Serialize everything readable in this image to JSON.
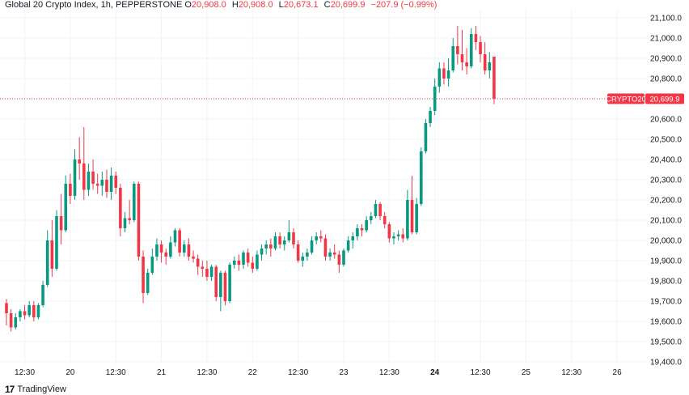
{
  "header": {
    "title": "Global 20 Crypto Index, 1h, PEPPERSTONE",
    "o_label": "O",
    "o_value": "20,908.0",
    "h_label": "H",
    "h_value": "20,908.0",
    "l_label": "L",
    "l_value": "20,673.1",
    "c_label": "C",
    "c_value": "20,699.9",
    "change": "−207.9 (−0.99%)"
  },
  "colors": {
    "up": "#089981",
    "down": "#f23645",
    "grid": "#f0f3fa",
    "text": "#131722"
  },
  "last_price": {
    "symbol": "CRYPTO20",
    "value_text": "20,699.9",
    "value": 20699.9
  },
  "footer": {
    "brand": "TradingView"
  },
  "chart_data": {
    "type": "candlestick",
    "title": "Global 20 Crypto Index, 1h, PEPPERSTONE",
    "ylim": [
      19400,
      21100
    ],
    "y_ticks": [
      {
        "value": 21100,
        "label": "21,100.0"
      },
      {
        "value": 21000,
        "label": "21,000.0"
      },
      {
        "value": 20900,
        "label": "20,900.0"
      },
      {
        "value": 20800,
        "label": "20,800.0"
      },
      {
        "value": 20700,
        "label": "20,700.0"
      },
      {
        "value": 20600,
        "label": "20,600.0"
      },
      {
        "value": 20500,
        "label": "20,500.0"
      },
      {
        "value": 20400,
        "label": "20,400.0"
      },
      {
        "value": 20300,
        "label": "20,300.0"
      },
      {
        "value": 20200,
        "label": "20,200.0"
      },
      {
        "value": 20100,
        "label": "20,100.0"
      },
      {
        "value": 20000,
        "label": "20,000.0"
      },
      {
        "value": 19900,
        "label": "19,900.0"
      },
      {
        "value": 19800,
        "label": "19,800.0"
      },
      {
        "value": 19700,
        "label": "19,700.0"
      },
      {
        "value": 19600,
        "label": "19,600.0"
      },
      {
        "value": 19500,
        "label": "19,500.0"
      },
      {
        "value": 19400,
        "label": "19,400.0"
      }
    ],
    "x_ticks": [
      {
        "label": "12:30",
        "bar": 4,
        "bold": false
      },
      {
        "label": "20",
        "bar": 14,
        "bold": false
      },
      {
        "label": "12:30",
        "bar": 24,
        "bold": false
      },
      {
        "label": "21",
        "bar": 34,
        "bold": false
      },
      {
        "label": "12:30",
        "bar": 44,
        "bold": false
      },
      {
        "label": "22",
        "bar": 54,
        "bold": false
      },
      {
        "label": "12:30",
        "bar": 64,
        "bold": false
      },
      {
        "label": "23",
        "bar": 74,
        "bold": false
      },
      {
        "label": "12:30",
        "bar": 84,
        "bold": false
      },
      {
        "label": "24",
        "bar": 94,
        "bold": true
      },
      {
        "label": "12:30",
        "bar": 104,
        "bold": false
      },
      {
        "label": "25",
        "bar": 114,
        "bold": false
      },
      {
        "label": "12:30",
        "bar": 124,
        "bold": false
      },
      {
        "label": "26",
        "bar": 134,
        "bold": false
      }
    ],
    "ohlc": [
      [
        19690,
        19710,
        19580,
        19640
      ],
      [
        19640,
        19660,
        19550,
        19570
      ],
      [
        19570,
        19640,
        19560,
        19620
      ],
      [
        19620,
        19660,
        19600,
        19650
      ],
      [
        19650,
        19680,
        19610,
        19630
      ],
      [
        19630,
        19700,
        19620,
        19680
      ],
      [
        19680,
        19700,
        19600,
        19620
      ],
      [
        19620,
        19690,
        19610,
        19680
      ],
      [
        19680,
        19800,
        19670,
        19780
      ],
      [
        19780,
        20050,
        19770,
        20000
      ],
      [
        20000,
        20100,
        19820,
        19860
      ],
      [
        19860,
        20150,
        19850,
        20120
      ],
      [
        20120,
        20230,
        19980,
        20050
      ],
      [
        20050,
        20320,
        20040,
        20280
      ],
      [
        20280,
        20330,
        20180,
        20220
      ],
      [
        20220,
        20450,
        20200,
        20400
      ],
      [
        20400,
        20510,
        20300,
        20380
      ],
      [
        20380,
        20560,
        20200,
        20250
      ],
      [
        20250,
        20380,
        20220,
        20340
      ],
      [
        20340,
        20400,
        20250,
        20280
      ],
      [
        20280,
        20330,
        20230,
        20270
      ],
      [
        20270,
        20340,
        20220,
        20300
      ],
      [
        20300,
        20350,
        20210,
        20240
      ],
      [
        20240,
        20360,
        20200,
        20320
      ],
      [
        20320,
        20340,
        20230,
        20260
      ],
      [
        20260,
        20280,
        20020,
        20060
      ],
      [
        20060,
        20140,
        20040,
        20110
      ],
      [
        20110,
        20200,
        20080,
        20100
      ],
      [
        20100,
        20290,
        20090,
        20280
      ],
      [
        20280,
        20290,
        19900,
        19920
      ],
      [
        19920,
        19950,
        19690,
        19740
      ],
      [
        19740,
        19860,
        19730,
        19840
      ],
      [
        19840,
        19960,
        19830,
        19920
      ],
      [
        19920,
        20010,
        19900,
        19980
      ],
      [
        19980,
        20000,
        19890,
        19940
      ],
      [
        19940,
        19960,
        19880,
        19920
      ],
      [
        19920,
        20020,
        19910,
        19990
      ],
      [
        19990,
        20060,
        19970,
        20050
      ],
      [
        20050,
        20060,
        19920,
        19940
      ],
      [
        19940,
        20000,
        19920,
        19980
      ],
      [
        19980,
        20010,
        19900,
        19920
      ],
      [
        19920,
        19950,
        19890,
        19910
      ],
      [
        19910,
        19930,
        19830,
        19870
      ],
      [
        19870,
        19900,
        19820,
        19860
      ],
      [
        19860,
        19900,
        19800,
        19820
      ],
      [
        19820,
        19880,
        19800,
        19870
      ],
      [
        19870,
        19880,
        19700,
        19720
      ],
      [
        19720,
        19850,
        19650,
        19840
      ],
      [
        19840,
        19850,
        19680,
        19700
      ],
      [
        19700,
        19890,
        19690,
        19880
      ],
      [
        19880,
        19920,
        19860,
        19900
      ],
      [
        19900,
        19930,
        19850,
        19880
      ],
      [
        19880,
        19950,
        19860,
        19940
      ],
      [
        19940,
        19960,
        19870,
        19890
      ],
      [
        19890,
        19920,
        19840,
        19860
      ],
      [
        19860,
        19950,
        19850,
        19930
      ],
      [
        19930,
        19980,
        19900,
        19960
      ],
      [
        19960,
        20000,
        19930,
        19980
      ],
      [
        19980,
        20010,
        19920,
        19960
      ],
      [
        19960,
        20040,
        19950,
        20020
      ],
      [
        20020,
        20040,
        19960,
        19980
      ],
      [
        19980,
        20020,
        19950,
        20000
      ],
      [
        20000,
        20100,
        19990,
        20040
      ],
      [
        20040,
        20060,
        19960,
        19980
      ],
      [
        19980,
        20000,
        19890,
        19900
      ],
      [
        19900,
        19940,
        19870,
        19920
      ],
      [
        19920,
        19960,
        19900,
        19940
      ],
      [
        19940,
        20020,
        19930,
        20000
      ],
      [
        20000,
        20040,
        19980,
        20020
      ],
      [
        20020,
        20050,
        19990,
        20010
      ],
      [
        20010,
        20030,
        19900,
        19920
      ],
      [
        19920,
        19960,
        19900,
        19940
      ],
      [
        19940,
        19980,
        19910,
        19930
      ],
      [
        19930,
        19950,
        19840,
        19880
      ],
      [
        19880,
        19960,
        19870,
        19950
      ],
      [
        19950,
        20020,
        19940,
        20000
      ],
      [
        20000,
        20040,
        19960,
        20020
      ],
      [
        20020,
        20080,
        20000,
        20060
      ],
      [
        20060,
        20080,
        20020,
        20050
      ],
      [
        20050,
        20120,
        20040,
        20100
      ],
      [
        20100,
        20140,
        20080,
        20120
      ],
      [
        20120,
        20200,
        20110,
        20180
      ],
      [
        20180,
        20190,
        20100,
        20120
      ],
      [
        20120,
        20140,
        20060,
        20080
      ],
      [
        20080,
        20090,
        19990,
        20010
      ],
      [
        20010,
        20040,
        19980,
        20020
      ],
      [
        20020,
        20050,
        20000,
        20030
      ],
      [
        20030,
        20060,
        19990,
        20010
      ],
      [
        20010,
        20250,
        20000,
        20200
      ],
      [
        20200,
        20320,
        20030,
        20040
      ],
      [
        20040,
        20210,
        20030,
        20180
      ],
      [
        20180,
        20460,
        20170,
        20440
      ],
      [
        20440,
        20600,
        20430,
        20580
      ],
      [
        20580,
        20660,
        20560,
        20640
      ],
      [
        20640,
        20800,
        20620,
        20760
      ],
      [
        20760,
        20880,
        20730,
        20850
      ],
      [
        20850,
        20880,
        20770,
        20800
      ],
      [
        20800,
        20900,
        20760,
        20840
      ],
      [
        20840,
        21000,
        20830,
        20960
      ],
      [
        20960,
        21060,
        20870,
        20920
      ],
      [
        20920,
        21040,
        20840,
        20880
      ],
      [
        20880,
        20950,
        20820,
        20860
      ],
      [
        20860,
        21050,
        20850,
        21020
      ],
      [
        21020,
        21060,
        20940,
        20980
      ],
      [
        20980,
        21010,
        20880,
        20920
      ],
      [
        20920,
        20980,
        20820,
        20840
      ],
      [
        20840,
        20930,
        20800,
        20880
      ],
      [
        20908,
        20908,
        20673,
        20700
      ]
    ]
  }
}
